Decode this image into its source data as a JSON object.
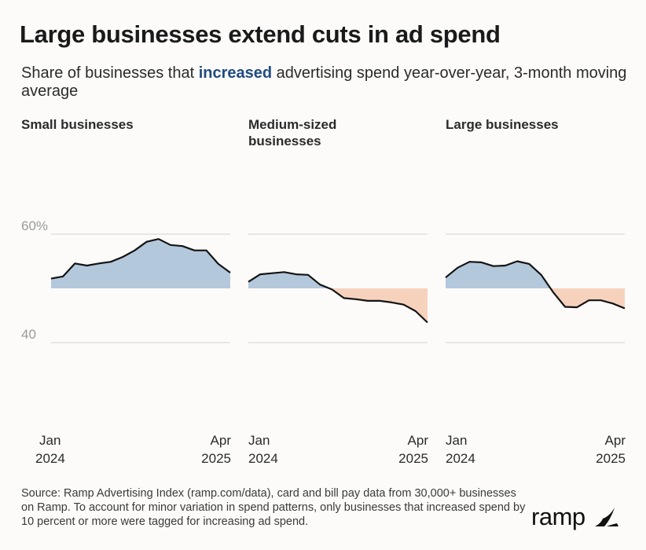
{
  "title": "Large businesses extend cuts in ad spend",
  "subtitle": {
    "before": "Share of businesses that ",
    "highlight": "increased",
    "after": " advertising spend year-over-year, 3-month moving average"
  },
  "colors": {
    "above": "#b4c8dc",
    "below": "#f6d2bd",
    "line": "#141414",
    "grid": "#d2d2d2",
    "axis_text": "#9a9a9a",
    "highlight": "#1f4b82"
  },
  "chart_data": [
    {
      "type": "area",
      "title": "Small businesses",
      "x": [
        "Jan 2024",
        "Feb 2024",
        "Mar 2024",
        "Apr 2024",
        "May 2024",
        "Jun 2024",
        "Jul 2024",
        "Aug 2024",
        "Sep 2024",
        "Oct 2024",
        "Nov 2024",
        "Dec 2024",
        "Jan 2025",
        "Feb 2025",
        "Mar 2025",
        "Apr 2025"
      ],
      "values": [
        51.8,
        52.2,
        54.6,
        54.2,
        54.6,
        54.9,
        55.8,
        57.0,
        58.6,
        59.1,
        58.0,
        57.8,
        57.0,
        57.0,
        54.5,
        52.9
      ],
      "baseline": 50,
      "ylim": [
        40,
        60
      ],
      "ytick_labels": [
        "60%",
        "40"
      ],
      "xtick_labels": [
        [
          "Jan",
          "2024"
        ],
        [
          "Apr",
          "2025"
        ]
      ]
    },
    {
      "type": "area",
      "title": "Medium-sized businesses",
      "x": [
        "Jan 2024",
        "Feb 2024",
        "Mar 2024",
        "Apr 2024",
        "May 2024",
        "Jun 2024",
        "Jul 2024",
        "Aug 2024",
        "Sep 2024",
        "Oct 2024",
        "Nov 2024",
        "Dec 2024",
        "Jan 2025",
        "Feb 2025",
        "Mar 2025",
        "Apr 2025"
      ],
      "values": [
        51.2,
        52.6,
        52.8,
        53.0,
        52.6,
        52.5,
        50.7,
        49.8,
        48.2,
        48.0,
        47.7,
        47.7,
        47.4,
        47.0,
        45.8,
        43.7
      ],
      "baseline": 50,
      "ylim": [
        40,
        60
      ],
      "xtick_labels": [
        [
          "Jan",
          "2024"
        ],
        [
          "Apr",
          "2025"
        ]
      ]
    },
    {
      "type": "area",
      "title": "Large businesses",
      "x": [
        "Jan 2024",
        "Feb 2024",
        "Mar 2024",
        "Apr 2024",
        "May 2024",
        "Jun 2024",
        "Jul 2024",
        "Aug 2024",
        "Sep 2024",
        "Oct 2024",
        "Nov 2024",
        "Dec 2024",
        "Jan 2025",
        "Feb 2025",
        "Mar 2025",
        "Apr 2025"
      ],
      "values": [
        52.0,
        53.8,
        54.9,
        54.8,
        54.1,
        54.2,
        55.0,
        54.5,
        52.5,
        49.3,
        46.6,
        46.5,
        47.8,
        47.8,
        47.2,
        46.3
      ],
      "baseline": 50,
      "ylim": [
        40,
        60
      ],
      "xtick_labels": [
        [
          "Jan",
          "2024"
        ],
        [
          "Apr",
          "2025"
        ]
      ]
    }
  ],
  "source": "Source: Ramp Advertising Index (ramp.com/data), card and bill pay data from 30,000+ businesses on Ramp. To account for minor variation in spend patterns, only businesses that increased spend by 10 percent or more were tagged for increasing ad spend.",
  "logo": {
    "text": "ramp",
    "icon": "ramp-wing-icon"
  }
}
